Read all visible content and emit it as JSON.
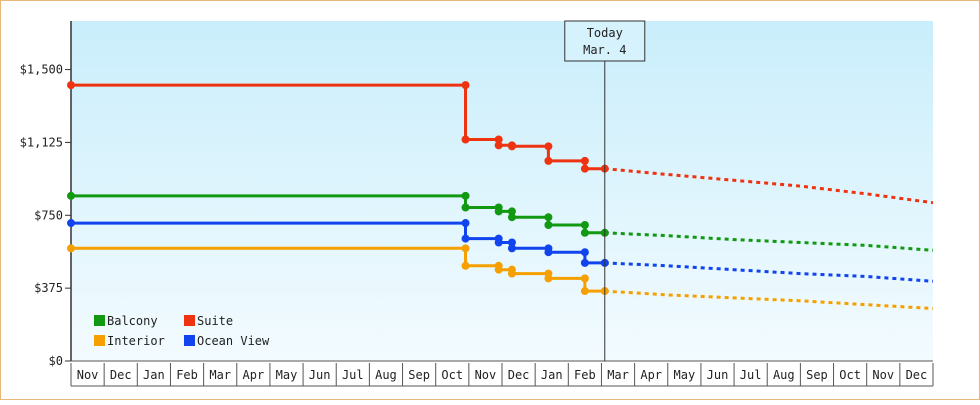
{
  "chart_data": {
    "type": "line",
    "title": "",
    "xlabel": "",
    "ylabel": "",
    "ylim": [
      0,
      1750
    ],
    "yticks": [
      {
        "value": 0,
        "label": "$0"
      },
      {
        "value": 375,
        "label": "$375"
      },
      {
        "value": 750,
        "label": "$750"
      },
      {
        "value": 1125,
        "label": "$1,125"
      },
      {
        "value": 1500,
        "label": "$1,500"
      }
    ],
    "months": [
      "Nov",
      "Dec",
      "Jan",
      "Feb",
      "Mar",
      "Apr",
      "May",
      "Jun",
      "Jul",
      "Aug",
      "Sep",
      "Oct",
      "Nov",
      "Dec",
      "Jan",
      "Feb",
      "Mar",
      "Apr",
      "May",
      "Jun",
      "Jul",
      "Aug",
      "Sep",
      "Oct",
      "Nov",
      "Dec"
    ],
    "x_unit": "month index (0 = start of first Nov)",
    "today": {
      "line1": "Today",
      "line2": "Mar. 4",
      "x": 16.1
    },
    "background": {
      "top": "#c9eefb",
      "bottom": "#f3fbff"
    },
    "legend": {
      "position": "bottom-left"
    },
    "series": [
      {
        "name": "Suite",
        "color": "#ee3311",
        "points": [
          [
            0,
            1420
          ],
          [
            11.9,
            1420
          ],
          [
            11.9,
            1140
          ],
          [
            12.9,
            1140
          ],
          [
            12.9,
            1110
          ],
          [
            13.3,
            1110
          ],
          [
            13.3,
            1105
          ],
          [
            14.4,
            1105
          ],
          [
            14.4,
            1030
          ],
          [
            15.5,
            1030
          ],
          [
            15.5,
            990
          ],
          [
            16.1,
            990
          ]
        ],
        "forecast": [
          [
            16.1,
            990
          ],
          [
            18,
            960
          ],
          [
            20,
            930
          ],
          [
            22,
            900
          ],
          [
            24,
            860
          ],
          [
            26,
            815
          ]
        ]
      },
      {
        "name": "Balcony",
        "color": "#119911",
        "points": [
          [
            0,
            850
          ],
          [
            11.9,
            850
          ],
          [
            11.9,
            790
          ],
          [
            12.9,
            790
          ],
          [
            12.9,
            770
          ],
          [
            13.3,
            770
          ],
          [
            13.3,
            740
          ],
          [
            14.4,
            740
          ],
          [
            14.4,
            700
          ],
          [
            15.5,
            700
          ],
          [
            15.5,
            660
          ],
          [
            16.1,
            660
          ]
        ],
        "forecast": [
          [
            16.1,
            660
          ],
          [
            18,
            645
          ],
          [
            20,
            625
          ],
          [
            22,
            610
          ],
          [
            24,
            595
          ],
          [
            26,
            570
          ]
        ]
      },
      {
        "name": "Ocean View",
        "color": "#1144ee",
        "points": [
          [
            0,
            710
          ],
          [
            11.9,
            710
          ],
          [
            11.9,
            630
          ],
          [
            12.9,
            630
          ],
          [
            12.9,
            610
          ],
          [
            13.3,
            610
          ],
          [
            13.3,
            580
          ],
          [
            14.4,
            580
          ],
          [
            14.4,
            560
          ],
          [
            15.5,
            560
          ],
          [
            15.5,
            505
          ],
          [
            16.1,
            505
          ]
        ],
        "forecast": [
          [
            16.1,
            505
          ],
          [
            18,
            490
          ],
          [
            20,
            470
          ],
          [
            22,
            450
          ],
          [
            24,
            435
          ],
          [
            26,
            410
          ]
        ]
      },
      {
        "name": "Interior",
        "color": "#f5a000",
        "points": [
          [
            0,
            580
          ],
          [
            11.9,
            580
          ],
          [
            11.9,
            490
          ],
          [
            12.9,
            490
          ],
          [
            12.9,
            470
          ],
          [
            13.3,
            470
          ],
          [
            13.3,
            450
          ],
          [
            14.4,
            450
          ],
          [
            14.4,
            425
          ],
          [
            15.5,
            425
          ],
          [
            15.5,
            360
          ],
          [
            16.1,
            360
          ]
        ],
        "forecast": [
          [
            16.1,
            360
          ],
          [
            18,
            340
          ],
          [
            20,
            325
          ],
          [
            22,
            310
          ],
          [
            24,
            290
          ],
          [
            26,
            270
          ]
        ]
      }
    ],
    "legend_items": [
      {
        "label": "Balcony",
        "color": "#119911",
        "col": 0,
        "row": 0
      },
      {
        "label": "Suite",
        "color": "#ee3311",
        "col": 1,
        "row": 0
      },
      {
        "label": "Interior",
        "color": "#f5a000",
        "col": 0,
        "row": 1
      },
      {
        "label": "Ocean View",
        "color": "#1144ee",
        "col": 1,
        "row": 1
      }
    ]
  }
}
